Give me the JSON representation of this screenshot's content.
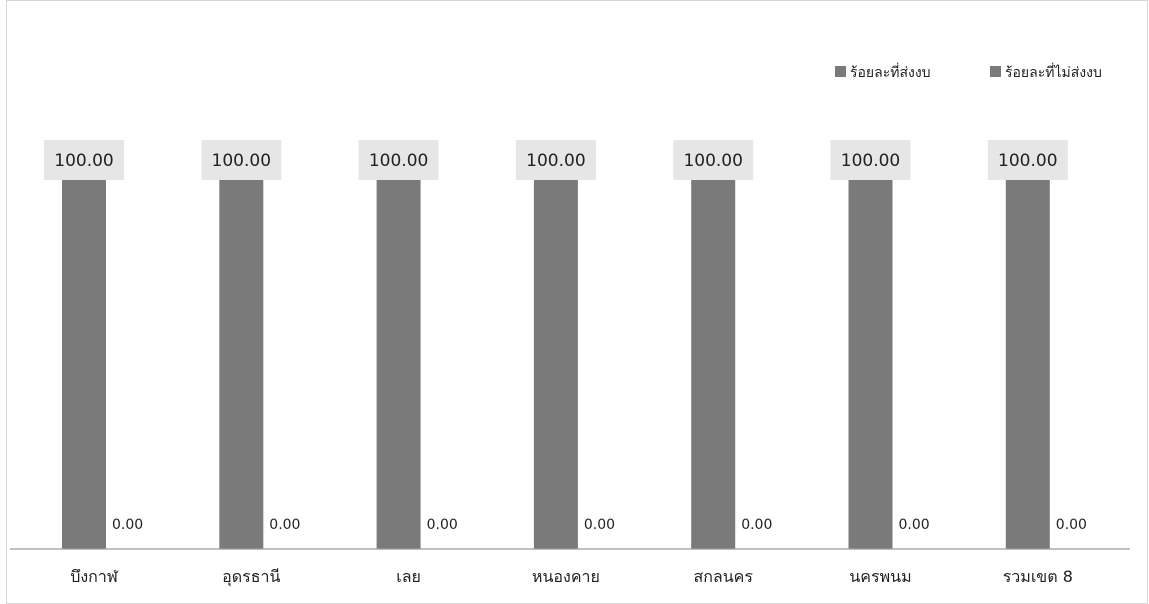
{
  "chart_data": {
    "type": "bar",
    "title": "",
    "xlabel": "",
    "ylabel": "",
    "ylim": [
      0,
      100
    ],
    "grid": false,
    "legend_position": "top-right",
    "categories": [
      "บึงกาฬ",
      "อุดรธานี",
      "เลย",
      "หนองคาย",
      "สกลนคร",
      "นครพนม",
      "รวมเขต 8"
    ],
    "series": [
      {
        "name": "ร้อยละที่ส่งงบ",
        "values": [
          100,
          100,
          100,
          100,
          100,
          100,
          100
        ],
        "labels": [
          "100.00",
          "100.00",
          "100.00",
          "100.00",
          "100.00",
          "100.00",
          "100.00"
        ],
        "color": "#7a7a7a"
      },
      {
        "name": "ร้อยละที่ไม่ส่งงบ",
        "values": [
          0,
          0,
          0,
          0,
          0,
          0,
          0
        ],
        "labels": [
          "0.00",
          "0.00",
          "0.00",
          "0.00",
          "0.00",
          "0.00",
          "0.00"
        ],
        "color": "#7a7a7a"
      }
    ],
    "colors": {
      "bar": "#7a7a7a",
      "label_box": "#e6e6e6",
      "axis": "#9a9a9a"
    }
  }
}
